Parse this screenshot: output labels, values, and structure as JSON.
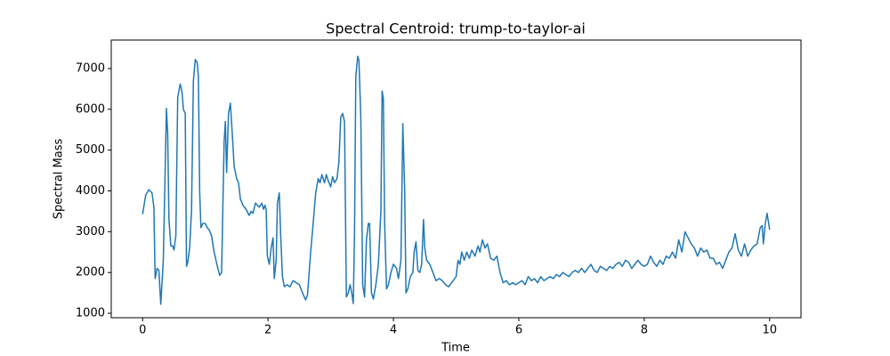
{
  "chart_data": {
    "type": "line",
    "title": "Spectral Centroid: trump-to-taylor-ai",
    "xlabel": "Time",
    "ylabel": "Spectral Mass",
    "x": [
      0,
      0.05,
      0.1,
      0.15,
      0.18,
      0.2,
      0.23,
      0.26,
      0.29,
      0.33,
      0.36,
      0.38,
      0.4,
      0.42,
      0.45,
      0.48,
      0.5,
      0.53,
      0.56,
      0.6,
      0.63,
      0.65,
      0.68,
      0.7,
      0.72,
      0.75,
      0.78,
      0.81,
      0.84,
      0.87,
      0.89,
      0.91,
      0.93,
      0.96,
      1.0,
      1.03,
      1.06,
      1.1,
      1.14,
      1.2,
      1.23,
      1.26,
      1.3,
      1.32,
      1.34,
      1.37,
      1.4,
      1.43,
      1.46,
      1.5,
      1.53,
      1.56,
      1.6,
      1.65,
      1.7,
      1.73,
      1.76,
      1.8,
      1.83,
      1.86,
      1.9,
      1.93,
      1.95,
      1.97,
      1.99,
      2.02,
      2.05,
      2.08,
      2.1,
      2.13,
      2.15,
      2.18,
      2.2,
      2.23,
      2.26,
      2.3,
      2.35,
      2.4,
      2.45,
      2.5,
      2.55,
      2.6,
      2.63,
      2.68,
      2.72,
      2.76,
      2.8,
      2.83,
      2.86,
      2.9,
      2.93,
      2.96,
      3.0,
      3.03,
      3.06,
      3.1,
      3.13,
      3.16,
      3.19,
      3.22,
      3.25,
      3.28,
      3.31,
      3.34,
      3.36,
      3.38,
      3.4,
      3.43,
      3.45,
      3.48,
      3.51,
      3.54,
      3.57,
      3.6,
      3.62,
      3.65,
      3.68,
      3.72,
      3.76,
      3.8,
      3.82,
      3.84,
      3.86,
      3.89,
      3.92,
      3.96,
      4.0,
      4.05,
      4.08,
      4.12,
      4.15,
      4.18,
      4.2,
      4.23,
      4.27,
      4.31,
      4.33,
      4.36,
      4.39,
      4.42,
      4.45,
      4.48,
      4.5,
      4.53,
      4.58,
      4.63,
      4.68,
      4.73,
      4.78,
      4.83,
      4.88,
      4.93,
      5.0,
      5.03,
      5.06,
      5.09,
      5.13,
      5.17,
      5.21,
      5.25,
      5.3,
      5.35,
      5.38,
      5.42,
      5.46,
      5.5,
      5.55,
      5.6,
      5.65,
      5.7,
      5.75,
      5.8,
      5.85,
      5.9,
      5.95,
      6.0,
      6.05,
      6.1,
      6.15,
      6.2,
      6.25,
      6.3,
      6.35,
      6.4,
      6.45,
      6.5,
      6.55,
      6.6,
      6.65,
      6.7,
      6.75,
      6.8,
      6.85,
      6.9,
      6.95,
      7.0,
      7.05,
      7.1,
      7.15,
      7.2,
      7.25,
      7.3,
      7.35,
      7.4,
      7.45,
      7.5,
      7.55,
      7.6,
      7.65,
      7.7,
      7.75,
      7.8,
      7.85,
      7.9,
      7.95,
      8.0,
      8.05,
      8.1,
      8.15,
      8.2,
      8.25,
      8.3,
      8.35,
      8.4,
      8.45,
      8.5,
      8.55,
      8.6,
      8.65,
      8.7,
      8.75,
      8.8,
      8.85,
      8.9,
      8.95,
      9.0,
      9.05,
      9.1,
      9.15,
      9.2,
      9.25,
      9.3,
      9.35,
      9.4,
      9.45,
      9.5,
      9.55,
      9.6,
      9.65,
      9.7,
      9.75,
      9.8,
      9.85,
      9.88,
      9.9,
      9.93,
      9.96,
      10.0
    ],
    "series": [
      {
        "color": "#1f77b4",
        "values": [
          3430,
          3900,
          4030,
          3950,
          3600,
          1850,
          2100,
          2050,
          1220,
          2300,
          4500,
          6020,
          5400,
          3300,
          2650,
          2650,
          2550,
          2900,
          6300,
          6620,
          6400,
          6000,
          5900,
          2150,
          2250,
          2600,
          3500,
          6700,
          7220,
          7150,
          6800,
          4000,
          3100,
          3200,
          3200,
          3100,
          3050,
          2900,
          2500,
          2100,
          1930,
          2000,
          5200,
          5700,
          4450,
          5900,
          6150,
          5400,
          4600,
          4300,
          4200,
          3800,
          3650,
          3550,
          3400,
          3500,
          3450,
          3700,
          3650,
          3600,
          3700,
          3550,
          3650,
          3550,
          2400,
          2200,
          2600,
          2850,
          1850,
          2300,
          3700,
          3950,
          3000,
          1900,
          1650,
          1700,
          1650,
          1800,
          1750,
          1700,
          1500,
          1330,
          1450,
          2500,
          3200,
          3950,
          4300,
          4200,
          4400,
          4200,
          4400,
          4250,
          4100,
          4350,
          4200,
          4300,
          4700,
          5800,
          5900,
          5700,
          1400,
          1500,
          1700,
          1450,
          1240,
          3000,
          6800,
          7300,
          7200,
          5800,
          1700,
          1400,
          2800,
          3200,
          3200,
          1500,
          1350,
          1700,
          2200,
          3500,
          6450,
          6250,
          3200,
          1600,
          1700,
          2000,
          2200,
          2100,
          1850,
          2300,
          5650,
          4000,
          1500,
          1600,
          1900,
          2000,
          2500,
          2750,
          2050,
          2000,
          2200,
          3300,
          2600,
          2300,
          2200,
          2000,
          1800,
          1850,
          1800,
          1700,
          1650,
          1750,
          1900,
          2300,
          2200,
          2500,
          2300,
          2500,
          2350,
          2550,
          2400,
          2650,
          2500,
          2800,
          2600,
          2700,
          2350,
          2300,
          2400,
          2000,
          1750,
          1800,
          1700,
          1750,
          1700,
          1750,
          1800,
          1700,
          1900,
          1800,
          1850,
          1750,
          1900,
          1800,
          1850,
          1900,
          1850,
          1950,
          1900,
          2000,
          1950,
          1900,
          2000,
          2050,
          2000,
          2100,
          2000,
          2100,
          2200,
          2050,
          2000,
          2150,
          2100,
          2050,
          2150,
          2100,
          2200,
          2250,
          2150,
          2300,
          2250,
          2100,
          2200,
          2300,
          2200,
          2150,
          2200,
          2400,
          2250,
          2150,
          2300,
          2200,
          2400,
          2350,
          2500,
          2350,
          2800,
          2500,
          3000,
          2850,
          2700,
          2600,
          2400,
          2600,
          2500,
          2550,
          2350,
          2350,
          2200,
          2250,
          2100,
          2300,
          2500,
          2600,
          2950,
          2550,
          2400,
          2700,
          2400,
          2550,
          2650,
          2700,
          3100,
          3150,
          2700,
          3200,
          3450,
          3050
        ]
      }
    ],
    "xlim": [
      -0.5,
      10.5
    ],
    "ylim": [
      891,
      7698
    ],
    "xticks": [
      0,
      2,
      4,
      6,
      8,
      10
    ],
    "yticks": [
      1000,
      2000,
      3000,
      4000,
      5000,
      6000,
      7000
    ],
    "grid": false
  }
}
